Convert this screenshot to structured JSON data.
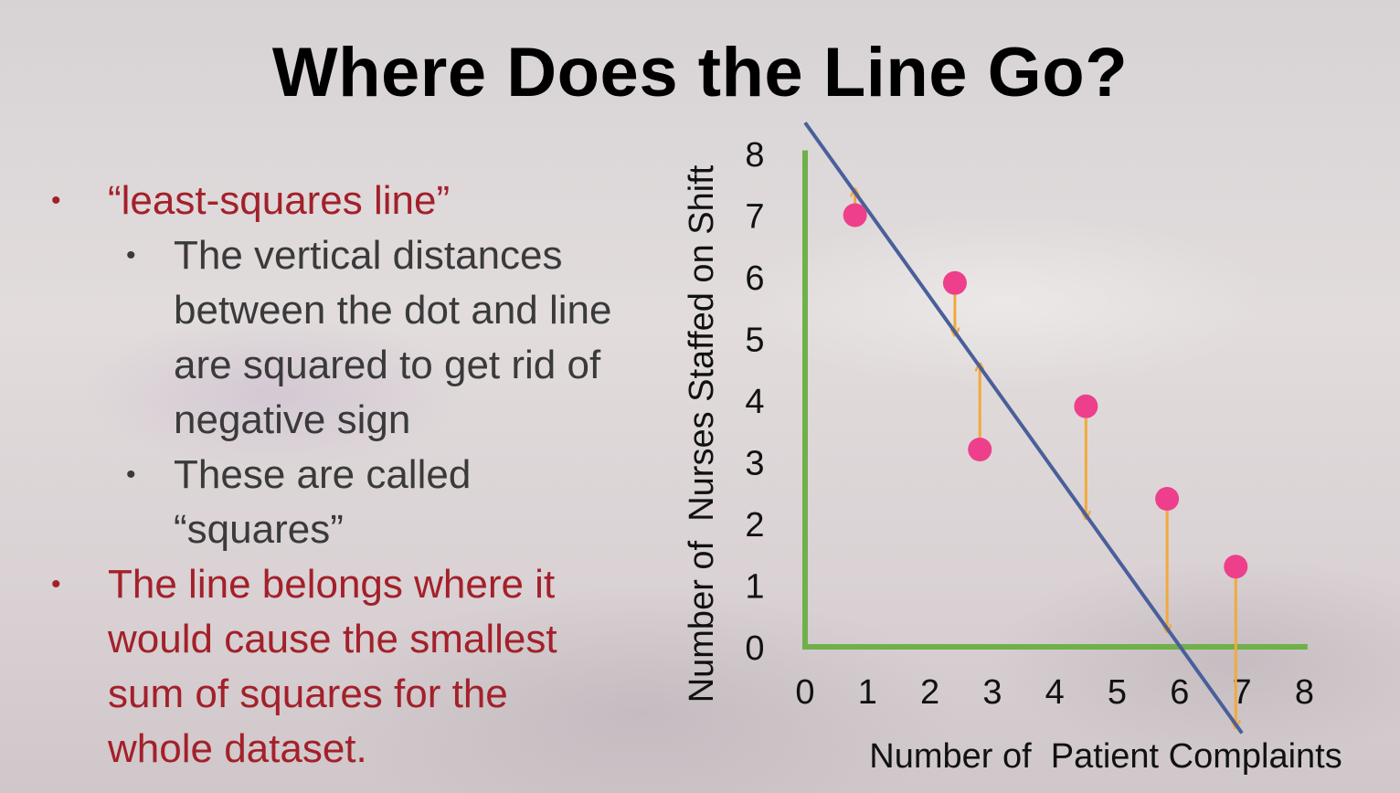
{
  "slide": {
    "title": "Where Does the Line Go?",
    "bullets": [
      {
        "level": 1,
        "text": "“least-squares line”"
      },
      {
        "level": 2,
        "lines": [
          "The vertical distances",
          "between the dot and line",
          "are squared to get rid of",
          "negative sign"
        ]
      },
      {
        "level": 2,
        "lines": [
          "These are called",
          "“squares”"
        ]
      },
      {
        "level": 1,
        "lines": [
          "The line belongs where it",
          "would cause the smallest",
          "sum of squares for the",
          "whole dataset."
        ]
      }
    ]
  },
  "chart_data": {
    "type": "scatter",
    "xlabel": "Number of  Patient Complaints",
    "ylabel": "Number of  Nurses Staffed on Shift",
    "xlim": [
      0,
      8
    ],
    "ylim": [
      0,
      8
    ],
    "x_ticks": [
      0,
      1,
      2,
      3,
      4,
      5,
      6,
      7,
      8
    ],
    "y_ticks": [
      0,
      1,
      2,
      3,
      4,
      5,
      6,
      7,
      8
    ],
    "points": [
      {
        "x": 0.8,
        "y": 7.0
      },
      {
        "x": 2.4,
        "y": 5.9
      },
      {
        "x": 2.8,
        "y": 3.2
      },
      {
        "x": 4.5,
        "y": 3.9
      },
      {
        "x": 5.8,
        "y": 2.4
      },
      {
        "x": 6.9,
        "y": 1.3
      }
    ],
    "regression_line": {
      "x1": 0,
      "y1": 8.5,
      "x2": 7.0,
      "y2": -1.4
    },
    "residuals_shown": true,
    "colors": {
      "axes": "#6fb04a",
      "line": "#4a5f9a",
      "points": "#ee3f8c",
      "residuals": "#f2a93b"
    }
  }
}
